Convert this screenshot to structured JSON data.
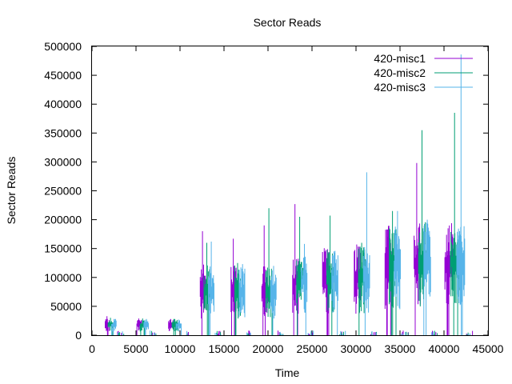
{
  "chart_data": {
    "type": "line",
    "title": "Sector Reads",
    "xlabel": "Time",
    "ylabel": "Sector Reads",
    "xlim": [
      0,
      45000
    ],
    "ylim": [
      0,
      500000
    ],
    "xticks": [
      "0",
      "5000",
      "10000",
      "15000",
      "20000",
      "25000",
      "30000",
      "35000",
      "40000",
      "45000"
    ],
    "yticks": [
      "0",
      "50000",
      "100000",
      "150000",
      "200000",
      "250000",
      "300000",
      "350000",
      "400000",
      "450000",
      "500000"
    ],
    "grid": false,
    "legend_position": "top-right",
    "bursts": [
      {
        "start": 1500,
        "end": 2700,
        "base": 25000,
        "m1_peak": 33000,
        "m2_peak": 30000,
        "m3_peak": 28000
      },
      {
        "start": 5100,
        "end": 6400,
        "base": 25000,
        "m1_peak": 29000,
        "m2_peak": 29000,
        "m3_peak": 28000
      },
      {
        "start": 8700,
        "end": 10100,
        "base": 25000,
        "m1_peak": 28000,
        "m2_peak": 28000,
        "m3_peak": 27000
      },
      {
        "start": 12300,
        "end": 13800,
        "base": 110000,
        "m1_peak": 180000,
        "m2_peak": 160000,
        "m3_peak": 162000
      },
      {
        "start": 15800,
        "end": 17300,
        "base": 110000,
        "m1_peak": 167000,
        "m2_peak": 125000,
        "m3_peak": 115000
      },
      {
        "start": 19300,
        "end": 20900,
        "base": 110000,
        "m1_peak": 190000,
        "m2_peak": 220000,
        "m3_peak": 120000
      },
      {
        "start": 22800,
        "end": 24400,
        "base": 130000,
        "m1_peak": 227000,
        "m2_peak": 205000,
        "m3_peak": 158000
      },
      {
        "start": 26200,
        "end": 27900,
        "base": 135000,
        "m1_peak": 145000,
        "m2_peak": 207000,
        "m3_peak": 146000
      },
      {
        "start": 29800,
        "end": 31500,
        "base": 140000,
        "m1_peak": 157000,
        "m2_peak": 160000,
        "m3_peak": 282000
      },
      {
        "start": 33300,
        "end": 35000,
        "base": 170000,
        "m1_peak": 183000,
        "m2_peak": 215000,
        "m3_peak": 215000
      },
      {
        "start": 36600,
        "end": 38400,
        "base": 175000,
        "m1_peak": 298000,
        "m2_peak": 355000,
        "m3_peak": 200000
      },
      {
        "start": 40100,
        "end": 42300,
        "base": 175000,
        "m1_peak": 185000,
        "m2_peak": 385000,
        "m3_peak": 486000
      }
    ],
    "series": [
      {
        "name": "420-misc1",
        "color": "#9400d3"
      },
      {
        "name": "420-misc2",
        "color": "#009e73"
      },
      {
        "name": "420-misc3",
        "color": "#56b4e9"
      }
    ]
  }
}
